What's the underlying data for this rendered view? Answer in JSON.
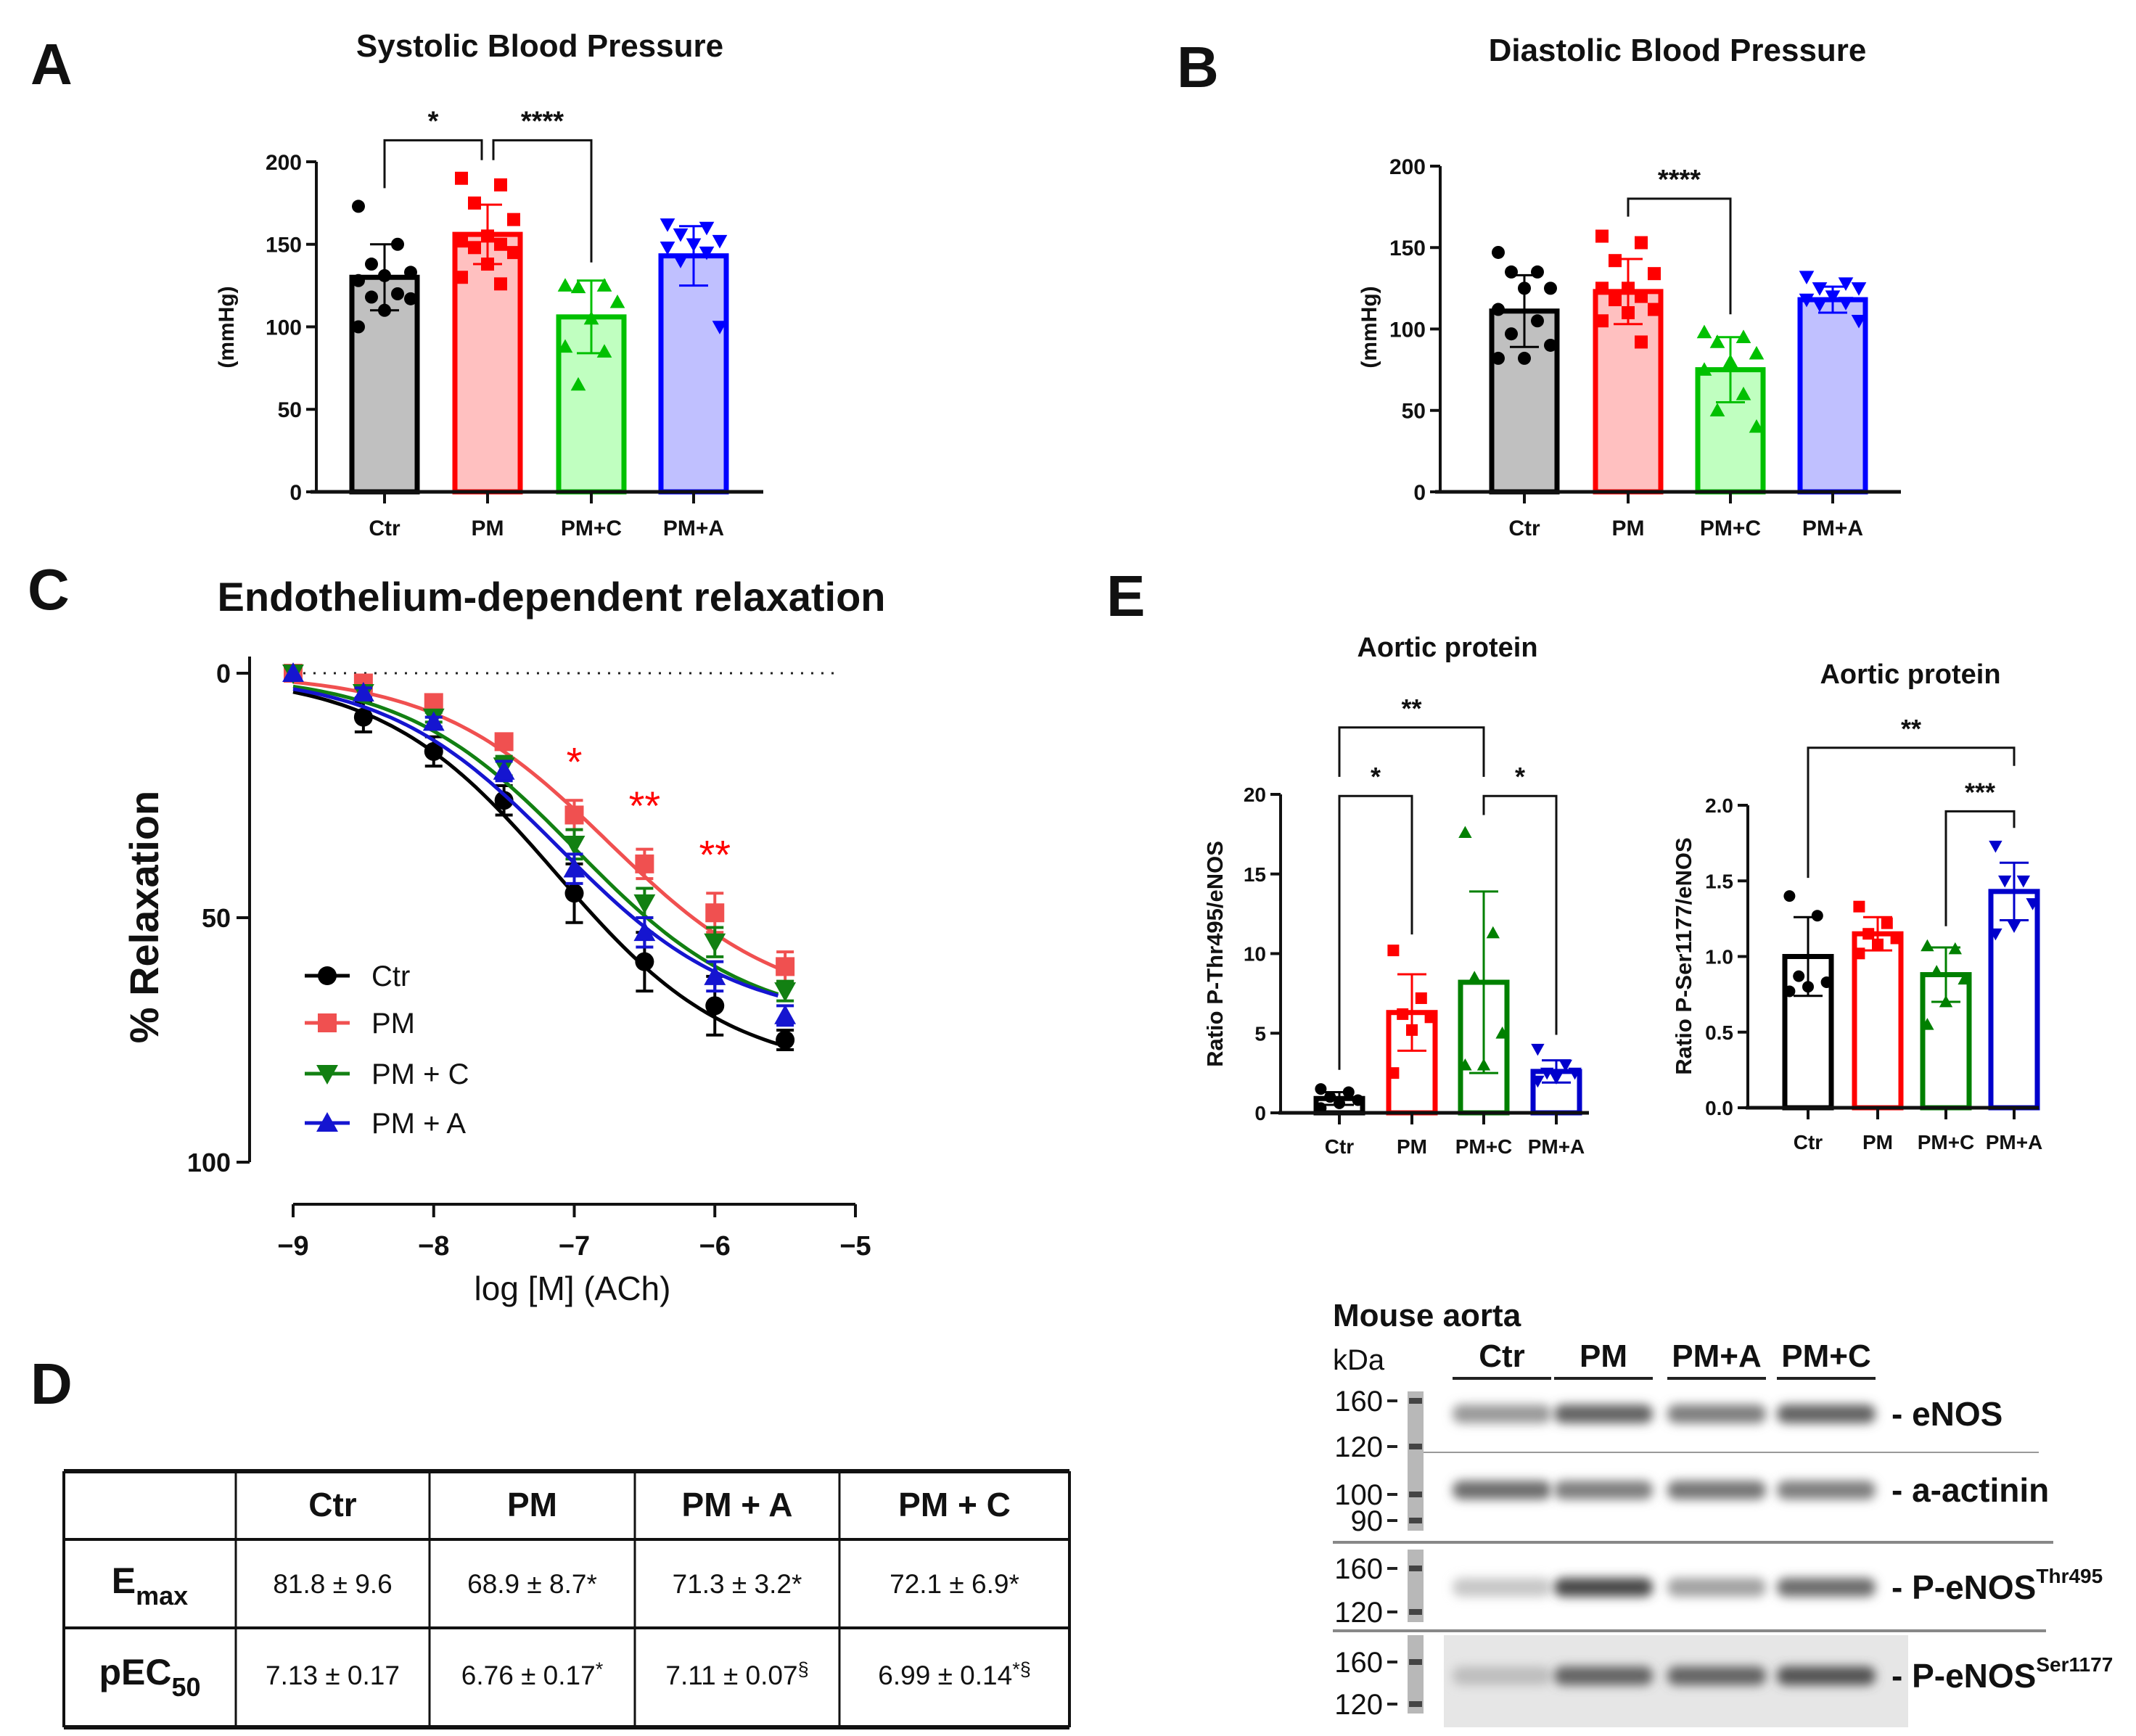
{
  "panel_labels": {
    "A": "A",
    "B": "B",
    "C": "C",
    "D": "D",
    "E": "E"
  },
  "chart_data": [
    {
      "id": "A",
      "type": "bar",
      "title": "Systolic Blood Pressure",
      "xlabel": "",
      "ylabel": "(mmHg)",
      "ylim": [
        0,
        200
      ],
      "yticks": [
        0,
        50,
        100,
        150,
        200
      ],
      "categories": [
        "Ctr",
        "PM",
        "PM+C",
        "PM+A"
      ],
      "means": [
        130,
        156,
        106,
        143
      ],
      "sd": [
        20,
        18,
        22,
        18
      ],
      "points": [
        [
          173,
          150,
          138,
          133,
          131,
          128,
          120,
          118,
          117,
          110,
          100
        ],
        [
          190,
          186,
          175,
          165,
          155,
          152,
          150,
          148,
          145,
          138,
          130,
          126
        ],
        [
          125,
          125,
          124,
          115,
          105,
          88,
          85,
          65
        ],
        [
          162,
          160,
          156,
          152,
          150,
          148,
          145,
          140,
          100
        ]
      ],
      "colors": [
        "#000000",
        "#ff0000",
        "#00c000",
        "#0000ff"
      ],
      "fills": [
        "#c0c0c0",
        "#ffc0c0",
        "#c0ffc0",
        "#c0c0ff"
      ],
      "markers": [
        "circle",
        "square",
        "triangle-up",
        "triangle-down"
      ],
      "significance": [
        {
          "from": 0,
          "to": 1,
          "label": "*",
          "level": 213,
          "left_end": 184,
          "right_end": 201
        },
        {
          "from": 1,
          "to": 2,
          "label": "****",
          "level": 213,
          "left_end": 201,
          "right_end": 139
        }
      ]
    },
    {
      "id": "B",
      "type": "bar",
      "title": "Diastolic Blood Pressure",
      "xlabel": "",
      "ylabel": "(mmHg)",
      "ylim": [
        0,
        200
      ],
      "yticks": [
        0,
        50,
        100,
        150,
        200
      ],
      "categories": [
        "Ctr",
        "PM",
        "PM+C",
        "PM+A"
      ],
      "means": [
        111,
        123,
        75,
        118
      ],
      "sd": [
        22,
        20,
        20,
        8
      ],
      "points": [
        [
          147,
          135,
          135,
          125,
          125,
          112,
          105,
          97,
          90,
          82,
          82
        ],
        [
          157,
          153,
          142,
          134,
          125,
          125,
          120,
          118,
          112,
          110,
          105,
          92
        ],
        [
          98,
          95,
          92,
          85,
          80,
          75,
          60,
          50,
          40
        ],
        [
          132,
          128,
          125,
          125,
          120,
          118,
          116,
          115,
          105
        ]
      ],
      "colors": [
        "#000000",
        "#ff0000",
        "#00c000",
        "#0000ff"
      ],
      "fills": [
        "#c0c0c0",
        "#ffc0c0",
        "#c0ffc0",
        "#c0c0ff"
      ],
      "markers": [
        "circle",
        "square",
        "triangle-up",
        "triangle-down"
      ],
      "significance": [
        {
          "from": 1,
          "to": 2,
          "label": "****",
          "level": 180,
          "left_end": 169,
          "right_end": 109
        }
      ]
    },
    {
      "id": "C",
      "type": "line",
      "title": "Endothelium-dependent relaxation",
      "xlabel": "log [M] (ACh)",
      "ylabel": "% Relaxation",
      "xlim": [
        -9,
        -5
      ],
      "xticks": [
        -9,
        -8,
        -7,
        -6,
        -5
      ],
      "xtick_labels": [
        "−9",
        "−8",
        "−7",
        "−6",
        "−5"
      ],
      "ylim": [
        0,
        100
      ],
      "yticks": [
        0,
        50,
        100
      ],
      "y_inverted": true,
      "reference_line": 0,
      "x": [
        -9,
        -8.5,
        -8,
        -7.5,
        -7,
        -6.5,
        -6,
        -5.5
      ],
      "series": [
        {
          "name": "Ctr",
          "color": "#000000",
          "marker": "circle",
          "values": [
            0,
            9,
            16,
            26,
            45,
            59,
            68,
            75
          ],
          "sem": [
            0,
            3,
            3,
            3,
            6,
            6,
            6,
            2
          ],
          "fit": {
            "emax": 81.8,
            "pec50": 7.13,
            "hill_slope": 0.7
          }
        },
        {
          "name": "PM",
          "color": "#f05050",
          "marker": "square",
          "values": [
            0,
            2,
            6,
            14,
            29,
            39,
            49,
            60
          ],
          "sem": [
            0,
            1,
            1,
            1,
            3,
            3,
            4,
            3
          ],
          "fit": {
            "emax": 68.9,
            "pec50": 6.76,
            "hill_slope": 0.7
          }
        },
        {
          "name": "PM + C",
          "color": "#128012",
          "marker": "triangle-down",
          "values": [
            0,
            4,
            9,
            19,
            35,
            47,
            55,
            65
          ],
          "sem": [
            0,
            1,
            1,
            2,
            3,
            3,
            3,
            2
          ],
          "fit": {
            "emax": 72.1,
            "pec50": 6.99,
            "hill_slope": 0.7
          }
        },
        {
          "name": "PM + A",
          "color": "#1515d0",
          "marker": "triangle-up",
          "values": [
            0,
            4,
            10,
            20,
            40,
            53,
            62,
            70
          ],
          "sem": [
            0,
            1,
            1,
            2,
            3,
            3,
            3,
            2
          ],
          "fit": {
            "emax": 71.3,
            "pec50": 7.11,
            "hill_slope": 0.7
          }
        }
      ],
      "legend": "left-middle",
      "annotations": [
        {
          "x": -7,
          "y": 18,
          "label": "*",
          "color": "#ff0000"
        },
        {
          "x": -6.5,
          "y": 27,
          "label": "**",
          "color": "#ff0000"
        },
        {
          "x": -6,
          "y": 37,
          "label": "**",
          "color": "#ff0000"
        }
      ]
    },
    {
      "id": "E1",
      "type": "bar",
      "title": "Aortic protein",
      "xlabel": "",
      "ylabel": "Ratio P-Thr495/eNOS",
      "ylim": [
        0,
        20
      ],
      "yticks": [
        0,
        5,
        10,
        15,
        20
      ],
      "categories": [
        "Ctr",
        "PM",
        "PM+C",
        "PM+A"
      ],
      "means": [
        0.9,
        6.3,
        8.2,
        2.6
      ],
      "sd": [
        0.4,
        2.4,
        5.7,
        0.7
      ],
      "points": [
        [
          1.5,
          1.3,
          1.0,
          0.8,
          0.6,
          0.3
        ],
        [
          10.2,
          7.2,
          6.2,
          6.0,
          5.2,
          2.5
        ],
        [
          17.6,
          11.3,
          8.5,
          5.0,
          3.0,
          3.0
        ],
        [
          4.0,
          3.0,
          2.5,
          2.5,
          2.2,
          2.0
        ]
      ],
      "colors": [
        "#000000",
        "#ff0000",
        "#008000",
        "#0000cc"
      ],
      "fills": [
        "#ffffff",
        "#ffffff",
        "#ffffff",
        "#ffffff"
      ],
      "markers": [
        "circle",
        "square",
        "triangle-up",
        "triangle-down"
      ],
      "significance": [
        {
          "from": 0,
          "to": 2,
          "label": "**",
          "level": 24.2,
          "left_end": 21.1,
          "right_end": 21.1
        },
        {
          "from": 0,
          "to": 1,
          "label": "*",
          "level": 19.9,
          "left_end": 2.7,
          "right_end": 11.2
        },
        {
          "from": 2,
          "to": 3,
          "label": "*",
          "level": 19.9,
          "left_end": 18.7,
          "right_end": 4.9
        }
      ]
    },
    {
      "id": "E2",
      "type": "bar",
      "title": "Aortic protein",
      "xlabel": "",
      "ylabel": "Ratio P-Ser1177/eNOS",
      "ylim": [
        0,
        2
      ],
      "yticks": [
        0,
        0.5,
        1,
        1.5,
        2
      ],
      "ytick_labels": [
        "0.0",
        "0.5",
        "1.0",
        "1.5",
        "2.0"
      ],
      "categories": [
        "Ctr",
        "PM",
        "PM+C",
        "PM+A"
      ],
      "means": [
        1.0,
        1.15,
        0.88,
        1.43
      ],
      "sd": [
        0.26,
        0.11,
        0.18,
        0.19
      ],
      "points": [
        [
          1.4,
          1.27,
          0.87,
          0.83,
          0.8,
          0.77
        ],
        [
          1.33,
          1.22,
          1.15,
          1.12,
          1.08,
          1.02
        ],
        [
          1.07,
          1.05,
          0.9,
          0.85,
          0.7,
          0.55
        ],
        [
          1.73,
          1.5,
          1.5,
          1.35,
          1.2,
          1.15
        ]
      ],
      "colors": [
        "#000000",
        "#ff0000",
        "#008000",
        "#0000cc"
      ],
      "fills": [
        "#ffffff",
        "#ffffff",
        "#ffffff",
        "#ffffff"
      ],
      "markers": [
        "circle",
        "square",
        "triangle-up",
        "triangle-down"
      ],
      "significance": [
        {
          "from": 0,
          "to": 3,
          "label": "**",
          "level": 2.38,
          "left_end": 1.52,
          "right_end": 2.26
        },
        {
          "from": 2,
          "to": 3,
          "label": "***",
          "level": 1.96,
          "left_end": 1.2,
          "right_end": 1.85
        }
      ]
    }
  ],
  "table": {
    "headers": [
      "",
      "Ctr",
      "PM",
      "PM + A",
      "PM + C"
    ],
    "rows": [
      {
        "label_main": "E",
        "label_sub": "max",
        "cells": [
          {
            "value": "81.8 ± 9.6",
            "mark": ""
          },
          {
            "value": "68.9 ± 8.7",
            "mark": "*"
          },
          {
            "value": "71.3 ± 3.2",
            "mark": "*"
          },
          {
            "value": "72.1 ± 6.9",
            "mark": "*"
          }
        ]
      },
      {
        "label_main": "pEC",
        "label_sub": "50",
        "cells": [
          {
            "value": "7.13 ± 0.17",
            "mark": ""
          },
          {
            "value": "6.76 ± 0.17",
            "mark": "*"
          },
          {
            "value": "7.11 ± 0.07",
            "mark": "§"
          },
          {
            "value": "6.99 ± 0.14",
            "mark": "*§"
          }
        ]
      }
    ]
  },
  "western_blot": {
    "title": "Mouse aorta",
    "unit": "kDa",
    "lanes": [
      "Ctr",
      "PM",
      "PM+A",
      "PM+C"
    ],
    "blots": [
      {
        "name": "eNOS",
        "label": "- eNOS",
        "sup": "",
        "markers": [
          "160",
          "120"
        ],
        "intensity": [
          0.45,
          0.75,
          0.6,
          0.75
        ]
      },
      {
        "name": "a-actinin",
        "label": "- a-actinin",
        "sup": "",
        "markers": [
          "100",
          "90"
        ],
        "intensity": [
          0.7,
          0.6,
          0.65,
          0.6
        ]
      },
      {
        "name": "p-enos-thr495",
        "label": "- P-eNOS",
        "sup": "Thr495",
        "markers": [
          "160",
          "120"
        ],
        "intensity": [
          0.2,
          0.9,
          0.4,
          0.7
        ]
      },
      {
        "name": "p-enos-ser1177",
        "label": "- P-eNOS",
        "sup": "Ser1177",
        "markers": [
          "160",
          "120"
        ],
        "intensity": [
          0.25,
          0.75,
          0.75,
          0.85
        ]
      }
    ]
  }
}
